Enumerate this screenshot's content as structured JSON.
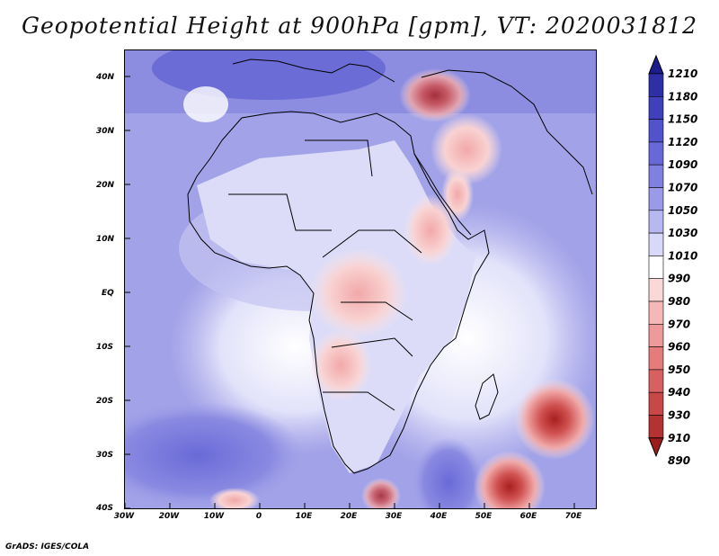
{
  "title": "Geopotential Height at 900hPa [gpm], VT: 2020031812",
  "credit": "GrADS: IGES/COLA",
  "map": {
    "lat_labels": [
      "40N",
      "30N",
      "20N",
      "10N",
      "EQ",
      "10S",
      "20S",
      "30S",
      "40S"
    ],
    "lon_labels": [
      "30W",
      "20W",
      "10W",
      "0",
      "10E",
      "20E",
      "30E",
      "40E",
      "50E",
      "60E",
      "70E"
    ],
    "lat_range": [
      -40,
      45
    ],
    "lon_range": [
      -30,
      75
    ]
  },
  "colorbar": {
    "levels": [
      "1210",
      "1180",
      "1150",
      "1120",
      "1090",
      "1070",
      "1050",
      "1030",
      "1010",
      "990",
      "980",
      "970",
      "960",
      "950",
      "940",
      "930",
      "910",
      "890"
    ],
    "colors": [
      "#1c1c8c",
      "#2e2ea6",
      "#4040bc",
      "#5252cc",
      "#6868d8",
      "#8080e0",
      "#9a9ae8",
      "#b8b8f0",
      "#d8d8f8",
      "#ffffff",
      "#fbd8d8",
      "#f5b8b8",
      "#ee9a9a",
      "#e47c7c",
      "#d86060",
      "#c84848",
      "#b43232",
      "#9a1c1c"
    ]
  }
}
